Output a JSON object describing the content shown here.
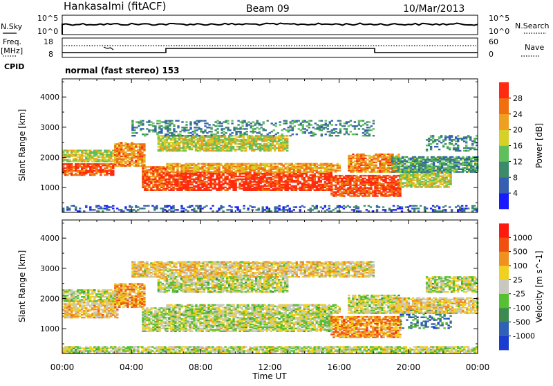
{
  "header": {
    "station": "Hankasalmi (fitACF)",
    "beam": "Beam 09",
    "date": "10/Mar/2013"
  },
  "aux": {
    "nsky_label": "N.Sky",
    "nsearch_label": "N.Search",
    "freq_label_1": "Freq.",
    "freq_label_2": "[MHz]",
    "nave_label": "Nave",
    "cpid_label": "CPID",
    "mode_text": "normal (fast stereo) 153",
    "noise_ticks_left": [
      "10^5",
      "10^0"
    ],
    "noise_ticks_right": [
      "10^5",
      "10^0"
    ],
    "freq_ticks": [
      "18",
      "8"
    ],
    "nave_ticks": [
      "60",
      "0"
    ]
  },
  "chart_data": [
    {
      "type": "heatmap",
      "name": "power",
      "ylabel": "Slant Range [km]",
      "xlabel": "Time UT",
      "x_ticks": [
        "00:00",
        "04:00",
        "08:00",
        "12:00",
        "16:00",
        "20:00",
        "00:00"
      ],
      "y_ticks": [
        "1000",
        "2000",
        "3000",
        "4000"
      ],
      "ylim": [
        180,
        4600
      ],
      "xlim_hours": [
        0,
        24
      ],
      "colorbar_label": "Power [dB]",
      "colorbar_ticks": [
        "4",
        "8",
        "12",
        "16",
        "20",
        "24",
        "28"
      ],
      "colorbar_colors": [
        "#1a1aff",
        "#3560b0",
        "#3c8a6a",
        "#5fbf5a",
        "#d6d028",
        "#f0a020",
        "#f07010",
        "#ff2a10"
      ],
      "bands": [
        {
          "t0": 0.0,
          "t1": 3.0,
          "r0": 1400,
          "r1": 1800,
          "level": 0.9
        },
        {
          "t0": 0.0,
          "t1": 3.2,
          "r0": 1850,
          "r1": 2250,
          "level": 0.55
        },
        {
          "t0": 3.0,
          "t1": 4.8,
          "r0": 1700,
          "r1": 2500,
          "level": 0.75
        },
        {
          "t0": 4.6,
          "t1": 6.0,
          "r0": 900,
          "r1": 1700,
          "level": 0.85
        },
        {
          "t0": 6.0,
          "t1": 15.5,
          "r0": 900,
          "r1": 1500,
          "level": 0.95
        },
        {
          "t0": 6.0,
          "t1": 16.0,
          "r0": 1500,
          "r1": 1800,
          "level": 0.7
        },
        {
          "t0": 5.5,
          "t1": 13.0,
          "r0": 2200,
          "r1": 2700,
          "level": 0.55
        },
        {
          "t0": 4.0,
          "t1": 18.0,
          "r0": 2700,
          "r1": 3200,
          "level": 0.3
        },
        {
          "t0": 15.5,
          "t1": 19.5,
          "r0": 700,
          "r1": 1400,
          "level": 0.9
        },
        {
          "t0": 16.5,
          "t1": 19.5,
          "r0": 1500,
          "r1": 2100,
          "level": 0.75
        },
        {
          "t0": 19.5,
          "t1": 22.5,
          "r0": 1000,
          "r1": 1600,
          "level": 0.55
        },
        {
          "t0": 21.0,
          "t1": 24.0,
          "r0": 2200,
          "r1": 2700,
          "level": 0.3
        },
        {
          "t0": 19.0,
          "t1": 24.0,
          "r0": 1500,
          "r1": 2000,
          "level": 0.35
        },
        {
          "t0": 0.0,
          "t1": 24.0,
          "r0": 200,
          "r1": 420,
          "level": 0.2
        }
      ]
    },
    {
      "type": "heatmap",
      "name": "velocity",
      "ylabel": "Slant Range [km]",
      "xlabel": "Time UT",
      "x_ticks": [
        "00:00",
        "04:00",
        "08:00",
        "12:00",
        "16:00",
        "20:00",
        "00:00"
      ],
      "y_ticks": [
        "1000",
        "2000",
        "3000",
        "4000"
      ],
      "ylim": [
        180,
        4600
      ],
      "xlim_hours": [
        0,
        24
      ],
      "colorbar_label": "Velocity [m s^-1]",
      "colorbar_ticks": [
        "1000",
        "500",
        "100",
        "25",
        "-25",
        "-100",
        "-500",
        "-1000"
      ],
      "colorbar_colors": [
        "#1a3cd0",
        "#3060b8",
        "#3c8a50",
        "#55c030",
        "#c8c8c0",
        "#f0d020",
        "#f09020",
        "#f05010",
        "#ff1a10"
      ],
      "bands": [
        {
          "t0": 0.0,
          "t1": 3.2,
          "r0": 1350,
          "r1": 1900,
          "level": 0.62
        },
        {
          "t0": 0.0,
          "t1": 3.2,
          "r0": 1900,
          "r1": 2300,
          "level": 0.5
        },
        {
          "t0": 3.0,
          "t1": 4.8,
          "r0": 1700,
          "r1": 2500,
          "level": 0.7
        },
        {
          "t0": 4.6,
          "t1": 6.0,
          "r0": 900,
          "r1": 1700,
          "level": 0.5
        },
        {
          "t0": 6.0,
          "t1": 15.5,
          "r0": 900,
          "r1": 1500,
          "level": 0.5
        },
        {
          "t0": 6.0,
          "t1": 16.0,
          "r0": 1500,
          "r1": 1800,
          "level": 0.5
        },
        {
          "t0": 5.5,
          "t1": 13.0,
          "r0": 2200,
          "r1": 2700,
          "level": 0.5
        },
        {
          "t0": 4.0,
          "t1": 18.0,
          "r0": 2700,
          "r1": 3200,
          "level": 0.6
        },
        {
          "t0": 15.5,
          "t1": 19.5,
          "r0": 700,
          "r1": 1400,
          "level": 0.72
        },
        {
          "t0": 16.5,
          "t1": 19.5,
          "r0": 1500,
          "r1": 2100,
          "level": 0.5
        },
        {
          "t0": 19.5,
          "t1": 22.5,
          "r0": 1000,
          "r1": 1600,
          "level": 0.22
        },
        {
          "t0": 21.0,
          "t1": 24.0,
          "r0": 2200,
          "r1": 2700,
          "level": 0.5
        },
        {
          "t0": 19.0,
          "t1": 24.0,
          "r0": 1500,
          "r1": 2000,
          "level": 0.6
        },
        {
          "t0": 0.0,
          "t1": 24.0,
          "r0": 200,
          "r1": 420,
          "level": 0.5
        }
      ]
    }
  ]
}
